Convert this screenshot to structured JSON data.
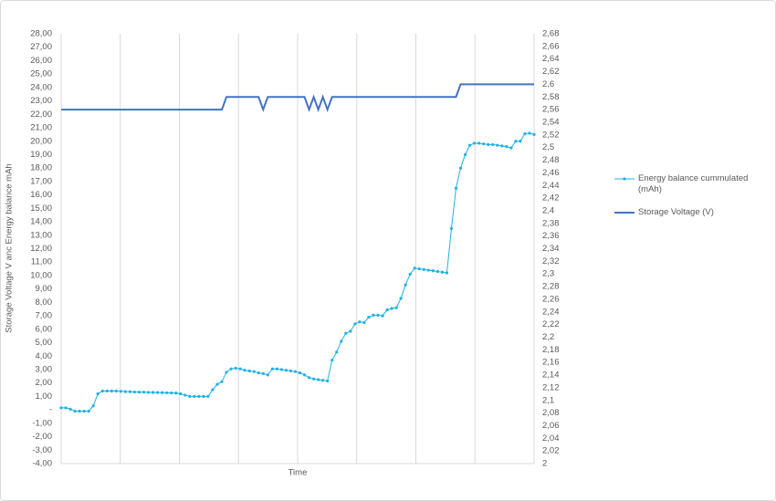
{
  "chart_data": {
    "type": "line",
    "y_axis_title": "Storage Voltage V anc Energy balance mAh",
    "x_axis_title": "Time",
    "ylim": [
      -4,
      28
    ],
    "yticks": [
      {
        "value": 28,
        "label": "28,00"
      },
      {
        "value": 27,
        "label": "27,00"
      },
      {
        "value": 26,
        "label": "26,00"
      },
      {
        "value": 25,
        "label": "25,00"
      },
      {
        "value": 24,
        "label": "24,00"
      },
      {
        "value": 23,
        "label": "23,00"
      },
      {
        "value": 22,
        "label": "22,00"
      },
      {
        "value": 21,
        "label": "21,00"
      },
      {
        "value": 20,
        "label": "20,00"
      },
      {
        "value": 19,
        "label": "19,00"
      },
      {
        "value": 18,
        "label": "18,00"
      },
      {
        "value": 17,
        "label": "17,00"
      },
      {
        "value": 16,
        "label": "16,00"
      },
      {
        "value": 15,
        "label": "15,00"
      },
      {
        "value": 14,
        "label": "14,00"
      },
      {
        "value": 13,
        "label": "13,00"
      },
      {
        "value": 12,
        "label": "12,00"
      },
      {
        "value": 11,
        "label": "11,00"
      },
      {
        "value": 10,
        "label": "10,00"
      },
      {
        "value": 9,
        "label": "9,00"
      },
      {
        "value": 8,
        "label": "8,00"
      },
      {
        "value": 7,
        "label": "7,00"
      },
      {
        "value": 6,
        "label": "6,00"
      },
      {
        "value": 5,
        "label": "5,00"
      },
      {
        "value": 4,
        "label": "4,00"
      },
      {
        "value": 3,
        "label": "3,00"
      },
      {
        "value": 2,
        "label": "2,00"
      },
      {
        "value": 1,
        "label": "1,00"
      },
      {
        "value": 0,
        "label": "-"
      },
      {
        "value": -1,
        "label": "-1,00"
      },
      {
        "value": -2,
        "label": "-2,00"
      },
      {
        "value": -3,
        "label": "-3,00"
      },
      {
        "value": -4,
        "label": "-4,00"
      }
    ],
    "y2lim": [
      2,
      2.68
    ],
    "y2ticks": [
      {
        "value": 2.68,
        "label": "2,68"
      },
      {
        "value": 2.66,
        "label": "2,66"
      },
      {
        "value": 2.64,
        "label": "2,64"
      },
      {
        "value": 2.62,
        "label": "2,62"
      },
      {
        "value": 2.6,
        "label": "2,6"
      },
      {
        "value": 2.58,
        "label": "2,58"
      },
      {
        "value": 2.56,
        "label": "2,56"
      },
      {
        "value": 2.54,
        "label": "2,54"
      },
      {
        "value": 2.52,
        "label": "2,52"
      },
      {
        "value": 2.5,
        "label": "2,5"
      },
      {
        "value": 2.48,
        "label": "2,48"
      },
      {
        "value": 2.46,
        "label": "2,46"
      },
      {
        "value": 2.44,
        "label": "2,44"
      },
      {
        "value": 2.42,
        "label": "2,42"
      },
      {
        "value": 2.4,
        "label": "2,4"
      },
      {
        "value": 2.38,
        "label": "2,38"
      },
      {
        "value": 2.36,
        "label": "2,36"
      },
      {
        "value": 2.34,
        "label": "2,34"
      },
      {
        "value": 2.32,
        "label": "2,32"
      },
      {
        "value": 2.3,
        "label": "2,3"
      },
      {
        "value": 2.28,
        "label": "2,28"
      },
      {
        "value": 2.26,
        "label": "2,26"
      },
      {
        "value": 2.24,
        "label": "2,24"
      },
      {
        "value": 2.22,
        "label": "2,22"
      },
      {
        "value": 2.2,
        "label": "2,2"
      },
      {
        "value": 2.18,
        "label": "2,18"
      },
      {
        "value": 2.16,
        "label": "2,16"
      },
      {
        "value": 2.14,
        "label": "2,14"
      },
      {
        "value": 2.12,
        "label": "2,12"
      },
      {
        "value": 2.1,
        "label": "2,1"
      },
      {
        "value": 2.08,
        "label": "2,08"
      },
      {
        "value": 2.06,
        "label": "2,06"
      },
      {
        "value": 2.04,
        "label": "2,04"
      },
      {
        "value": 2.02,
        "label": "2,02"
      },
      2
    ],
    "series": [
      {
        "name": "Energy balance cummulated (mAh)",
        "color": "#1fb1e6",
        "markers": true,
        "values": [
          0.15,
          0.15,
          0.05,
          -0.1,
          -0.1,
          -0.1,
          -0.1,
          0.3,
          1.2,
          1.4,
          1.4,
          1.4,
          1.4,
          1.38,
          1.36,
          1.35,
          1.33,
          1.32,
          1.32,
          1.3,
          1.3,
          1.29,
          1.28,
          1.27,
          1.26,
          1.25,
          1.2,
          1.1,
          1.0,
          1.0,
          1.0,
          1.0,
          1.0,
          1.5,
          1.9,
          2.1,
          2.8,
          3.05,
          3.1,
          3.05,
          2.95,
          2.9,
          2.85,
          2.75,
          2.7,
          2.6,
          3.05,
          3.05,
          3.0,
          2.95,
          2.9,
          2.85,
          2.75,
          2.6,
          2.4,
          2.3,
          2.25,
          2.2,
          2.15,
          3.7,
          4.3,
          5.1,
          5.7,
          5.85,
          6.4,
          6.55,
          6.5,
          6.9,
          7.05,
          7.05,
          7.0,
          7.45,
          7.55,
          7.6,
          8.3,
          9.3,
          10.1,
          10.55,
          10.5,
          10.45,
          10.4,
          10.35,
          10.3,
          10.25,
          10.2,
          13.5,
          16.5,
          18.0,
          19.0,
          19.7,
          19.85,
          19.85,
          19.8,
          19.75,
          19.75,
          19.7,
          19.65,
          19.6,
          19.5,
          20.0,
          20.0,
          20.55,
          20.6,
          20.5
        ]
      },
      {
        "name": "Storage Voltage (V)",
        "color": "#4472c4",
        "axis": "y2",
        "markers": false,
        "values": [
          2.56,
          2.56,
          2.56,
          2.56,
          2.56,
          2.56,
          2.56,
          2.56,
          2.56,
          2.56,
          2.56,
          2.56,
          2.56,
          2.56,
          2.56,
          2.56,
          2.56,
          2.56,
          2.56,
          2.56,
          2.56,
          2.56,
          2.56,
          2.56,
          2.56,
          2.56,
          2.56,
          2.56,
          2.56,
          2.56,
          2.56,
          2.56,
          2.56,
          2.56,
          2.56,
          2.56,
          2.58,
          2.58,
          2.58,
          2.58,
          2.58,
          2.58,
          2.58,
          2.58,
          2.56,
          2.58,
          2.58,
          2.58,
          2.58,
          2.58,
          2.58,
          2.58,
          2.58,
          2.58,
          2.56,
          2.58,
          2.56,
          2.58,
          2.56,
          2.58,
          2.58,
          2.58,
          2.58,
          2.58,
          2.58,
          2.58,
          2.58,
          2.58,
          2.58,
          2.58,
          2.58,
          2.58,
          2.58,
          2.58,
          2.58,
          2.58,
          2.58,
          2.58,
          2.58,
          2.58,
          2.58,
          2.58,
          2.58,
          2.58,
          2.58,
          2.58,
          2.58,
          2.6,
          2.6,
          2.6,
          2.6,
          2.6,
          2.6,
          2.6,
          2.6,
          2.6,
          2.6,
          2.6,
          2.6,
          2.6,
          2.6,
          2.6,
          2.6,
          2.6
        ]
      }
    ]
  }
}
